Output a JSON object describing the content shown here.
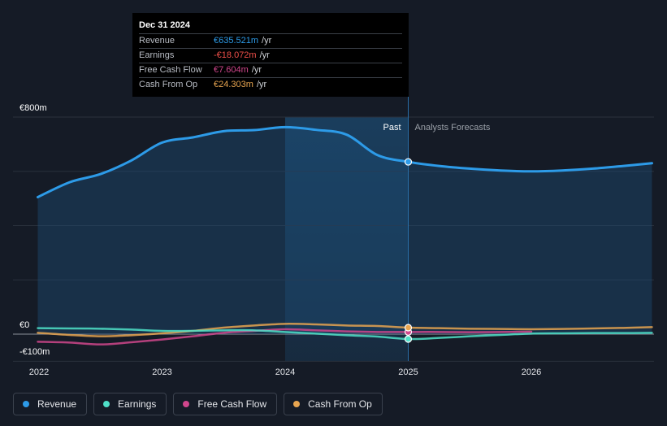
{
  "colors": {
    "background": "#151b26",
    "revenue": "#2d9be8",
    "earnings": "#4fe0c8",
    "free_cash_flow": "#d0468c",
    "cash_from_op": "#e8a550",
    "gridline": "#2a313c",
    "axis_text": "#ffffff"
  },
  "tooltip": {
    "date": "Dec 31 2024",
    "rows": [
      {
        "label": "Revenue",
        "value": "€635.521m",
        "unit": "/yr",
        "color": "#2d9be8"
      },
      {
        "label": "Earnings",
        "value": "-€18.072m",
        "unit": "/yr",
        "color": "#f0504a"
      },
      {
        "label": "Free Cash Flow",
        "value": "€7.604m",
        "unit": "/yr",
        "color": "#d0468c"
      },
      {
        "label": "Cash From Op",
        "value": "€24.303m",
        "unit": "/yr",
        "color": "#e8a550"
      }
    ]
  },
  "legend": [
    {
      "label": "Revenue",
      "color": "#2d9be8"
    },
    {
      "label": "Earnings",
      "color": "#4fe0c8"
    },
    {
      "label": "Free Cash Flow",
      "color": "#d0468c"
    },
    {
      "label": "Cash From Op",
      "color": "#e8a550"
    }
  ],
  "chart_data": {
    "type": "line",
    "title": "",
    "xlabel": "",
    "ylabel": "",
    "y_unit": "€m",
    "ylim": [
      -100,
      800
    ],
    "xlim": [
      2021.85,
      2026.98
    ],
    "x_ticks": [
      2022,
      2023,
      2024,
      2025,
      2026
    ],
    "x_tick_labels": [
      "2022",
      "2023",
      "2024",
      "2025",
      "2026"
    ],
    "y_tick_labels": [
      {
        "value": 800,
        "label": "€800m"
      },
      {
        "value": 0,
        "label": "€0"
      },
      {
        "value": -100,
        "label": "-€100m"
      }
    ],
    "gridlines_y": [
      800,
      600,
      400,
      200,
      0,
      -100
    ],
    "past_region": {
      "start": 2024.0,
      "end": 2025.0,
      "label": "Past"
    },
    "forecast_label": "Analysts Forecasts",
    "forecast_start": 2025.0,
    "legend_position": "bottom-left",
    "highlight_x": 2025.0,
    "series": [
      {
        "name": "Revenue",
        "color": "#2d9be8",
        "fill": true,
        "x": [
          2021.99,
          2022.25,
          2022.5,
          2022.75,
          2023.0,
          2023.25,
          2023.5,
          2023.75,
          2024.0,
          2024.25,
          2024.5,
          2024.75,
          2025.0,
          2025.25,
          2025.5,
          2025.75,
          2026.0,
          2026.25,
          2026.5,
          2026.75,
          2026.98
        ],
        "y": [
          505,
          560,
          590,
          640,
          706,
          725,
          748,
          752,
          763,
          753,
          735,
          660,
          635,
          620,
          610,
          603,
          600,
          603,
          610,
          620,
          630
        ],
        "forecast_from_index": 12
      },
      {
        "name": "Earnings",
        "color": "#4fe0c8",
        "x": [
          2021.99,
          2022.25,
          2022.5,
          2022.75,
          2023.0,
          2023.25,
          2023.5,
          2023.75,
          2024.0,
          2024.25,
          2024.5,
          2024.75,
          2025.0,
          2025.25,
          2025.5,
          2025.75,
          2026.0,
          2026.25,
          2026.5,
          2026.75,
          2026.98
        ],
        "y": [
          22,
          21,
          20,
          17,
          12,
          12,
          14,
          14,
          8,
          2,
          -4,
          -9,
          -18,
          -14,
          -8,
          -3,
          2,
          3,
          4,
          4,
          5
        ],
        "forecast_from_index": 12
      },
      {
        "name": "Free Cash Flow",
        "color": "#d0468c",
        "x": [
          2021.99,
          2022.25,
          2022.5,
          2022.75,
          2023.0,
          2023.25,
          2023.5,
          2023.75,
          2024.0,
          2024.25,
          2024.5,
          2024.75,
          2025.0,
          2025.25,
          2025.5,
          2025.75,
          2026.0
        ],
        "y": [
          -28,
          -31,
          -38,
          -30,
          -20,
          -8,
          5,
          12,
          18,
          14,
          10,
          8,
          8,
          8,
          7,
          8,
          9
        ],
        "forecast_from_index": 12
      },
      {
        "name": "Cash From Op",
        "color": "#e8a550",
        "x": [
          2021.99,
          2022.25,
          2022.5,
          2022.75,
          2023.0,
          2023.25,
          2023.5,
          2023.75,
          2024.0,
          2024.25,
          2024.5,
          2024.75,
          2025.0,
          2025.25,
          2025.5,
          2025.75,
          2026.0,
          2026.25,
          2026.5,
          2026.75,
          2026.98
        ],
        "y": [
          5,
          -3,
          -8,
          -4,
          3,
          12,
          24,
          32,
          38,
          36,
          32,
          30,
          24,
          22,
          20,
          19,
          18,
          19,
          21,
          23,
          26
        ],
        "forecast_from_index": 12
      }
    ]
  }
}
